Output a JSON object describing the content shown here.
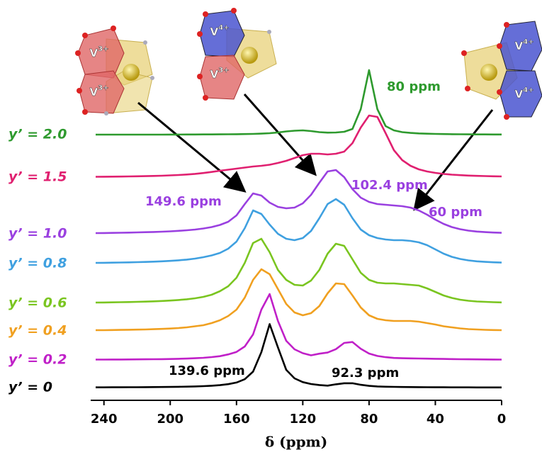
{
  "chart_data": {
    "type": "line",
    "x": [
      245,
      240,
      235,
      230,
      225,
      220,
      215,
      210,
      205,
      200,
      195,
      190,
      185,
      180,
      175,
      170,
      165,
      160,
      155,
      150,
      145,
      140,
      135,
      130,
      125,
      120,
      115,
      110,
      105,
      100,
      95,
      90,
      85,
      80,
      75,
      70,
      65,
      60,
      55,
      50,
      45,
      40,
      35,
      30,
      25,
      20,
      15,
      10,
      5,
      0
    ],
    "series": [
      {
        "name": "y’ = 0",
        "color": "#000000",
        "values": [
          0.3,
          0.3,
          0.4,
          0.4,
          0.5,
          0.5,
          0.6,
          0.7,
          0.8,
          0.9,
          1.1,
          1.3,
          1.6,
          2,
          2.6,
          3.4,
          4.8,
          7.1,
          11.8,
          22.5,
          50,
          89.6,
          56.7,
          25,
          13,
          7.7,
          5,
          3.6,
          2.7,
          4.6,
          6.1,
          6.1,
          3.9,
          2.4,
          1.6,
          1.2,
          1,
          0.8,
          0.7,
          0.6,
          0.5,
          0.4,
          0.4,
          0.3,
          0.3,
          0.3,
          0.2,
          0.2,
          0.2,
          0.2
        ]
      },
      {
        "name": "y’ = 0.2",
        "color": "#c020c8",
        "values": [
          0.5,
          0.5,
          0.6,
          0.6,
          0.7,
          0.8,
          0.9,
          1,
          1.1,
          1.3,
          1.6,
          1.9,
          2.4,
          3,
          4,
          5.3,
          7.8,
          11.3,
          19,
          36,
          71,
          93,
          55,
          27,
          15,
          9.5,
          6.5,
          8.8,
          10.4,
          15.2,
          24,
          25.3,
          15.7,
          9,
          5.6,
          3.9,
          2.8,
          2.4,
          2.2,
          2,
          1.8,
          1.6,
          1.4,
          1.2,
          1,
          0.9,
          0.8,
          0.7,
          0.6,
          0.5
        ]
      },
      {
        "name": "y’ = 0.4",
        "color": "#f0a020",
        "values": [
          1,
          1,
          1.2,
          1.4,
          1.6,
          1.8,
          2,
          2.4,
          2.8,
          3.3,
          4,
          5,
          6.5,
          8,
          11,
          15,
          21,
          30,
          47,
          72,
          87,
          80,
          59,
          38,
          26,
          22,
          25,
          35,
          53,
          67,
          66,
          50,
          33,
          22,
          17,
          15,
          14,
          14,
          14,
          13,
          11,
          9,
          6.5,
          5,
          3.5,
          2.5,
          2,
          1.5,
          1.2,
          1
        ]
      },
      {
        "name": "y’ = 0.6",
        "color": "#7ac520",
        "values": [
          1,
          1.1,
          1.3,
          1.5,
          1.7,
          2,
          2.3,
          2.7,
          3.2,
          3.8,
          4.6,
          5.6,
          7,
          9,
          12,
          17,
          24,
          36,
          57,
          85,
          91,
          72,
          47,
          33,
          26,
          25,
          32,
          47,
          70,
          84,
          81,
          62,
          43,
          33,
          29,
          28,
          28,
          27,
          26,
          25,
          21,
          16,
          11,
          7.5,
          5,
          3.5,
          2.5,
          2,
          1.5,
          1.2
        ]
      },
      {
        "name": "y’ = 0.8",
        "color": "#3fa0e0",
        "values": [
          1,
          1.1,
          1.3,
          1.5,
          1.7,
          2,
          2.3,
          2.7,
          3.2,
          3.8,
          4.6,
          5.6,
          7,
          9,
          11.5,
          15,
          21,
          31,
          50,
          75,
          70,
          55,
          42,
          35,
          33,
          36,
          46,
          64,
          84,
          91,
          83,
          64,
          48,
          40,
          36,
          34,
          33,
          33,
          32,
          30,
          26,
          20,
          14,
          9.5,
          6.5,
          4.5,
          3.2,
          2.4,
          1.8,
          1.4
        ]
      },
      {
        "name": "y’ = 1.0",
        "color": "#9a40e0",
        "values": [
          1,
          1.1,
          1.3,
          1.5,
          1.7,
          2,
          2.3,
          2.6,
          3,
          3.5,
          4.2,
          5,
          6,
          7.5,
          9.5,
          12.5,
          17,
          26,
          42,
          57,
          54,
          44,
          38,
          36,
          37,
          43,
          55,
          72,
          88,
          90,
          80,
          63,
          51,
          45,
          42,
          41,
          40,
          39,
          37,
          33,
          27,
          20,
          14,
          9.5,
          6.5,
          4.5,
          3.2,
          2.4,
          1.8,
          1.4
        ]
      },
      {
        "name": "y’ = 1.5",
        "color": "#e02070",
        "values": [
          0.5,
          0.6,
          0.7,
          0.8,
          1,
          1.2,
          1.4,
          1.7,
          2,
          2.5,
          3,
          3.7,
          4.6,
          5.8,
          7.3,
          9,
          10.5,
          12,
          13.5,
          15,
          16,
          17.5,
          20,
          23,
          27,
          31,
          33,
          33,
          32,
          33,
          36,
          48,
          70,
          87,
          85,
          62,
          38,
          24,
          16,
          11,
          8,
          6,
          4.5,
          3.5,
          2.8,
          2.2,
          1.8,
          1.5,
          1.2,
          1
        ]
      },
      {
        "name": "y’ = 2.0",
        "color": "#2e9a2e",
        "values": [
          0,
          0,
          0,
          0,
          0,
          0,
          0,
          0,
          0,
          0.1,
          0.1,
          0.2,
          0.2,
          0.3,
          0.3,
          0.4,
          0.5,
          0.6,
          0.8,
          1,
          1.4,
          2,
          3,
          4.5,
          5.5,
          6,
          5,
          3.5,
          2.8,
          3,
          4,
          8,
          36,
          91,
          36,
          12,
          6,
          3.5,
          2.4,
          1.7,
          1.3,
          1,
          0.8,
          0.6,
          0.5,
          0.4,
          0.3,
          0.3,
          0.2,
          0.2
        ]
      }
    ],
    "xlim": [
      248,
      0
    ],
    "xticks": [
      240,
      200,
      160,
      120,
      80,
      40,
      0
    ],
    "x_label": "δ (ppm)",
    "annotations": [
      {
        "text": "80 ppm",
        "color": "#2e9a2e"
      },
      {
        "text": "102.4 ppm",
        "color": "#9a40e0"
      },
      {
        "text": "149.6 ppm",
        "color": "#9a40e0"
      },
      {
        "text": "60 ppm",
        "color": "#9a40e0"
      },
      {
        "text": "139.6 ppm",
        "color": "#000000"
      },
      {
        "text": "92.3 ppm",
        "color": "#000000"
      }
    ]
  },
  "illustrations": [
    {
      "labels": [
        {
          "element": "V",
          "charge": "3+"
        },
        {
          "element": "V",
          "charge": "3+"
        }
      ]
    },
    {
      "labels": [
        {
          "element": "V",
          "charge": "4+"
        },
        {
          "element": "V",
          "charge": "3+"
        }
      ]
    },
    {
      "labels": [
        {
          "element": "V",
          "charge": "4+"
        },
        {
          "element": "V",
          "charge": "4+"
        }
      ]
    }
  ]
}
